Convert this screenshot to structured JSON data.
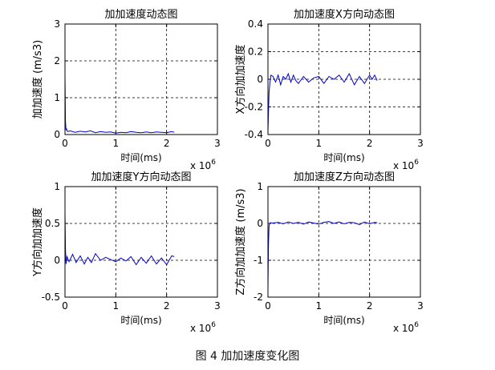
{
  "figure_caption": "图 4  加加速度变化图",
  "chart_data": [
    {
      "type": "line",
      "title": "加加速度动态图",
      "xlabel": "时间(ms)",
      "ylabel": "加加速度 (m/s3)",
      "x_multiplier": "x 10",
      "x_exponent": "6",
      "xlim": [
        0,
        3
      ],
      "ylim": [
        0,
        3
      ],
      "xticks": [
        0,
        1,
        2,
        3
      ],
      "yticks": [
        0,
        1,
        2,
        3
      ],
      "xtick_labels": [
        "0",
        "1",
        "2",
        "3"
      ],
      "ytick_labels": [
        "0",
        "1",
        "2",
        "3"
      ],
      "grid": true,
      "line_color": "#0000cc",
      "series": [
        {
          "x": [
            0.0,
            0.01,
            0.02,
            0.03,
            0.05,
            0.1,
            0.2,
            0.3,
            0.4,
            0.5,
            0.6,
            0.7,
            0.8,
            0.9,
            1.0,
            1.1,
            1.2,
            1.3,
            1.4,
            1.5,
            1.6,
            1.7,
            1.8,
            1.9,
            2.0,
            2.1,
            2.15
          ],
          "y": [
            1.6,
            0.35,
            0.12,
            0.15,
            0.08,
            0.1,
            0.06,
            0.09,
            0.07,
            0.1,
            0.05,
            0.08,
            0.06,
            0.07,
            0.04,
            0.06,
            0.05,
            0.08,
            0.06,
            0.05,
            0.07,
            0.05,
            0.07,
            0.06,
            0.05,
            0.08,
            0.06
          ]
        }
      ]
    },
    {
      "type": "line",
      "title": "加加速度X方向动态图",
      "xlabel": "时间(ms)",
      "ylabel": "X方向加加速度",
      "x_multiplier": "x 10",
      "x_exponent": "6",
      "xlim": [
        0,
        3
      ],
      "ylim": [
        -0.4,
        0.4
      ],
      "xticks": [
        0,
        1,
        2,
        3
      ],
      "yticks": [
        -0.4,
        -0.2,
        0,
        0.2,
        0.4
      ],
      "xtick_labels": [
        "0",
        "1",
        "2",
        "3"
      ],
      "ytick_labels": [
        "-0.4",
        "-0.2",
        "0",
        "0.2",
        "0.4"
      ],
      "grid": true,
      "line_color": "#0000cc",
      "series": [
        {
          "x": [
            0.0,
            0.01,
            0.02,
            0.04,
            0.06,
            0.1,
            0.15,
            0.2,
            0.25,
            0.3,
            0.35,
            0.4,
            0.45,
            0.5,
            0.55,
            0.6,
            0.7,
            0.8,
            0.9,
            1.0,
            1.1,
            1.2,
            1.3,
            1.4,
            1.5,
            1.6,
            1.7,
            1.8,
            1.9,
            2.0,
            2.05,
            2.1,
            2.15
          ],
          "y": [
            -0.38,
            -0.25,
            -0.1,
            -0.02,
            0.03,
            0.02,
            -0.02,
            0.03,
            -0.04,
            0.02,
            0.0,
            0.04,
            -0.02,
            0.03,
            -0.01,
            -0.03,
            0.02,
            -0.02,
            0.01,
            0.02,
            -0.03,
            0.02,
            0.0,
            0.03,
            -0.02,
            0.04,
            -0.04,
            0.02,
            -0.03,
            0.03,
            0.0,
            0.03,
            -0.01
          ]
        }
      ]
    },
    {
      "type": "line",
      "title": "加加速度Y方向动态图",
      "xlabel": "时间(ms)",
      "ylabel": "Y方向加加速度",
      "x_multiplier": "x 10",
      "x_exponent": "6",
      "xlim": [
        0,
        3
      ],
      "ylim": [
        -0.5,
        1
      ],
      "xticks": [
        0,
        1,
        2,
        3
      ],
      "yticks": [
        -0.5,
        0,
        0.5,
        1
      ],
      "xtick_labels": [
        "0",
        "1",
        "2",
        "3"
      ],
      "ytick_labels": [
        "-0.5",
        "0",
        "0.5",
        "1"
      ],
      "grid": true,
      "line_color": "#0000cc",
      "series": [
        {
          "x": [
            0.0,
            0.01,
            0.02,
            0.04,
            0.08,
            0.15,
            0.22,
            0.3,
            0.38,
            0.45,
            0.52,
            0.6,
            0.7,
            0.8,
            0.9,
            1.0,
            1.1,
            1.2,
            1.3,
            1.4,
            1.5,
            1.6,
            1.7,
            1.8,
            1.9,
            2.0,
            2.1,
            2.15
          ],
          "y": [
            0.65,
            0.15,
            -0.05,
            0.05,
            -0.02,
            0.08,
            -0.03,
            0.06,
            -0.05,
            0.04,
            -0.03,
            0.09,
            0.0,
            0.04,
            0.01,
            -0.02,
            0.03,
            -0.01,
            0.05,
            -0.06,
            0.04,
            -0.04,
            0.06,
            -0.05,
            0.03,
            -0.06,
            0.06,
            0.05
          ]
        }
      ]
    },
    {
      "type": "line",
      "title": "加加速度Z方向动态图",
      "xlabel": "时间(ms)",
      "ylabel": "Z方向加加速度 (m/s3)",
      "x_multiplier": "x 10",
      "x_exponent": "6",
      "xlim": [
        0,
        3
      ],
      "ylim": [
        -2,
        1
      ],
      "xticks": [
        0,
        1,
        2,
        3
      ],
      "yticks": [
        -2,
        -1,
        0,
        1
      ],
      "xtick_labels": [
        "0",
        "1",
        "2",
        "3"
      ],
      "ytick_labels": [
        "-2",
        "-1",
        "0",
        "1"
      ],
      "grid": true,
      "line_color": "#0000cc",
      "series": [
        {
          "x": [
            0.0,
            0.01,
            0.02,
            0.03,
            0.05,
            0.1,
            0.2,
            0.3,
            0.4,
            0.5,
            0.6,
            0.7,
            0.8,
            0.9,
            1.0,
            1.1,
            1.2,
            1.3,
            1.4,
            1.5,
            1.6,
            1.7,
            1.8,
            1.9,
            2.0,
            2.1,
            2.15
          ],
          "y": [
            -1.75,
            -0.6,
            -0.1,
            0.0,
            0.02,
            0.01,
            0.03,
            -0.01,
            0.04,
            0.0,
            0.03,
            -0.02,
            0.04,
            0.01,
            -0.02,
            0.03,
            0.05,
            0.0,
            0.04,
            -0.01,
            0.03,
            0.02,
            -0.03,
            0.04,
            -0.01,
            0.03,
            0.02
          ]
        }
      ]
    }
  ]
}
